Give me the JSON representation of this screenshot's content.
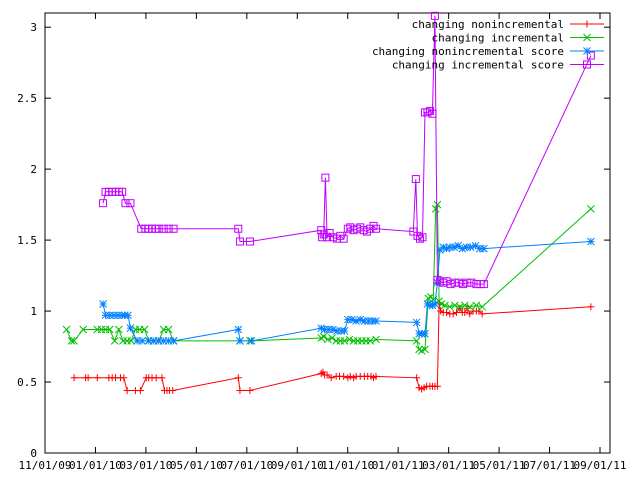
{
  "chart_data": {
    "type": "line",
    "title": "",
    "xlabel": "",
    "ylabel": "",
    "x_ticks": [
      "11/01/09",
      "01/01/10",
      "03/01/10",
      "05/01/10",
      "07/01/10",
      "09/01/10",
      "11/01/10",
      "01/01/11",
      "03/01/11",
      "05/01/11",
      "07/01/11",
      "09/01/11"
    ],
    "ylim": [
      0,
      3.1
    ],
    "y_ticks": [
      {
        "value": 0,
        "label": "0"
      },
      {
        "value": 0.5,
        "label": "0.5"
      },
      {
        "value": 1,
        "label": "1"
      },
      {
        "value": 1.5,
        "label": "1.5"
      },
      {
        "value": 2,
        "label": "2"
      },
      {
        "value": 2.5,
        "label": "2.5"
      },
      {
        "value": 3,
        "label": "3"
      }
    ],
    "legend_position": "top-right",
    "series": [
      {
        "name": "changing nonincremental",
        "color": "#ff0000",
        "marker": "plus",
        "points": [
          [
            "2009-12-06",
            0.53
          ],
          [
            "2009-12-20",
            0.53
          ],
          [
            "2009-12-23",
            0.53
          ],
          [
            "2010-01-03",
            0.53
          ],
          [
            "2010-01-17",
            0.53
          ],
          [
            "2010-01-21",
            0.53
          ],
          [
            "2010-01-25",
            0.53
          ],
          [
            "2010-01-31",
            0.53
          ],
          [
            "2010-02-04",
            0.53
          ],
          [
            "2010-02-08",
            0.44
          ],
          [
            "2010-02-18",
            0.44
          ],
          [
            "2010-02-24",
            0.44
          ],
          [
            "2010-03-03",
            0.53
          ],
          [
            "2010-03-06",
            0.53
          ],
          [
            "2010-03-10",
            0.53
          ],
          [
            "2010-03-15",
            0.53
          ],
          [
            "2010-03-22",
            0.53
          ],
          [
            "2010-03-25",
            0.44
          ],
          [
            "2010-03-28",
            0.44
          ],
          [
            "2010-03-31",
            0.44
          ],
          [
            "2010-04-04",
            0.44
          ],
          [
            "2010-06-22",
            0.53
          ],
          [
            "2010-06-24",
            0.44
          ],
          [
            "2010-07-06",
            0.44
          ],
          [
            "2010-09-30",
            0.56
          ],
          [
            "2010-10-02",
            0.57
          ],
          [
            "2010-10-04",
            0.55
          ],
          [
            "2010-10-07",
            0.55
          ],
          [
            "2010-10-12",
            0.53
          ],
          [
            "2010-10-18",
            0.54
          ],
          [
            "2010-10-22",
            0.54
          ],
          [
            "2010-10-27",
            0.54
          ],
          [
            "2010-11-01",
            0.53
          ],
          [
            "2010-11-04",
            0.54
          ],
          [
            "2010-11-08",
            0.53
          ],
          [
            "2010-11-11",
            0.54
          ],
          [
            "2010-11-16",
            0.54
          ],
          [
            "2010-11-21",
            0.54
          ],
          [
            "2010-11-25",
            0.54
          ],
          [
            "2010-11-29",
            0.54
          ],
          [
            "2010-12-02",
            0.53
          ],
          [
            "2010-12-05",
            0.54
          ],
          [
            "2011-01-23",
            0.53
          ],
          [
            "2011-01-26",
            0.46
          ],
          [
            "2011-01-29",
            0.45
          ],
          [
            "2011-02-01",
            0.46
          ],
          [
            "2011-02-04",
            0.47
          ],
          [
            "2011-02-08",
            0.47
          ],
          [
            "2011-02-11",
            0.47
          ],
          [
            "2011-02-14",
            0.47
          ],
          [
            "2011-02-17",
            0.47
          ],
          [
            "2011-02-19",
            1.05
          ],
          [
            "2011-02-21",
            1.0
          ],
          [
            "2011-02-24",
            0.99
          ],
          [
            "2011-02-28",
            0.99
          ],
          [
            "2011-03-04",
            0.98
          ],
          [
            "2011-03-08",
            0.98
          ],
          [
            "2011-03-12",
            0.99
          ],
          [
            "2011-03-16",
            1.02
          ],
          [
            "2011-03-19",
            0.99
          ],
          [
            "2011-03-22",
            0.99
          ],
          [
            "2011-03-25",
            1.02
          ],
          [
            "2011-03-28",
            0.98
          ],
          [
            "2011-04-01",
            1.0
          ],
          [
            "2011-04-05",
            1.0
          ],
          [
            "2011-04-08",
            1.0
          ],
          [
            "2011-04-12",
            0.98
          ],
          [
            "2011-08-21",
            1.03
          ]
        ]
      },
      {
        "name": "changing incremental",
        "color": "#00c000",
        "marker": "cross",
        "points": [
          [
            "2009-11-27",
            0.87
          ],
          [
            "2009-12-03",
            0.79
          ],
          [
            "2009-12-06",
            0.79
          ],
          [
            "2009-12-17",
            0.87
          ],
          [
            "2010-01-03",
            0.87
          ],
          [
            "2010-01-08",
            0.87
          ],
          [
            "2010-01-13",
            0.87
          ],
          [
            "2010-01-18",
            0.87
          ],
          [
            "2010-01-24",
            0.79
          ],
          [
            "2010-01-29",
            0.87
          ],
          [
            "2010-02-03",
            0.79
          ],
          [
            "2010-02-08",
            0.79
          ],
          [
            "2010-02-13",
            0.79
          ],
          [
            "2010-02-18",
            0.87
          ],
          [
            "2010-02-23",
            0.87
          ],
          [
            "2010-03-01",
            0.87
          ],
          [
            "2010-03-06",
            0.79
          ],
          [
            "2010-03-12",
            0.79
          ],
          [
            "2010-03-18",
            0.79
          ],
          [
            "2010-03-24",
            0.87
          ],
          [
            "2010-03-30",
            0.87
          ],
          [
            "2010-04-05",
            0.79
          ],
          [
            "2010-06-24",
            0.79
          ],
          [
            "2010-07-06",
            0.79
          ],
          [
            "2010-09-30",
            0.81
          ],
          [
            "2010-10-03",
            0.82
          ],
          [
            "2010-10-08",
            0.8
          ],
          [
            "2010-10-13",
            0.81
          ],
          [
            "2010-10-18",
            0.79
          ],
          [
            "2010-10-23",
            0.79
          ],
          [
            "2010-10-28",
            0.79
          ],
          [
            "2010-11-03",
            0.8
          ],
          [
            "2010-11-08",
            0.79
          ],
          [
            "2010-11-13",
            0.79
          ],
          [
            "2010-11-18",
            0.79
          ],
          [
            "2010-11-23",
            0.79
          ],
          [
            "2010-11-28",
            0.79
          ],
          [
            "2010-12-05",
            0.8
          ],
          [
            "2011-01-23",
            0.79
          ],
          [
            "2011-01-26",
            0.73
          ],
          [
            "2011-01-29",
            0.72
          ],
          [
            "2011-02-02",
            0.73
          ],
          [
            "2011-02-06",
            1.09
          ],
          [
            "2011-02-09",
            1.1
          ],
          [
            "2011-02-12",
            1.08
          ],
          [
            "2011-02-15",
            1.72
          ],
          [
            "2011-02-17",
            1.75
          ],
          [
            "2011-02-19",
            1.07
          ],
          [
            "2011-02-22",
            1.05
          ],
          [
            "2011-02-26",
            1.04
          ],
          [
            "2011-03-04",
            1.03
          ],
          [
            "2011-03-10",
            1.04
          ],
          [
            "2011-03-16",
            1.03
          ],
          [
            "2011-03-22",
            1.04
          ],
          [
            "2011-03-28",
            1.03
          ],
          [
            "2011-04-05",
            1.04
          ],
          [
            "2011-04-12",
            1.03
          ],
          [
            "2011-08-21",
            1.72
          ]
        ]
      },
      {
        "name": "changing nonincremental score",
        "color": "#0080ff",
        "marker": "star",
        "points": [
          [
            "2010-01-10",
            1.05
          ],
          [
            "2010-01-13",
            0.97
          ],
          [
            "2010-01-18",
            0.97
          ],
          [
            "2010-01-23",
            0.97
          ],
          [
            "2010-01-28",
            0.97
          ],
          [
            "2010-02-02",
            0.97
          ],
          [
            "2010-02-05",
            0.97
          ],
          [
            "2010-02-09",
            0.97
          ],
          [
            "2010-02-12",
            0.88
          ],
          [
            "2010-02-20",
            0.79
          ],
          [
            "2010-02-26",
            0.79
          ],
          [
            "2010-03-06",
            0.79
          ],
          [
            "2010-03-12",
            0.79
          ],
          [
            "2010-03-18",
            0.79
          ],
          [
            "2010-03-24",
            0.79
          ],
          [
            "2010-03-30",
            0.79
          ],
          [
            "2010-04-05",
            0.79
          ],
          [
            "2010-06-22",
            0.87
          ],
          [
            "2010-06-24",
            0.79
          ],
          [
            "2010-07-08",
            0.79
          ],
          [
            "2010-09-30",
            0.88
          ],
          [
            "2010-10-04",
            0.87
          ],
          [
            "2010-10-09",
            0.87
          ],
          [
            "2010-10-14",
            0.87
          ],
          [
            "2010-10-19",
            0.86
          ],
          [
            "2010-10-24",
            0.86
          ],
          [
            "2010-10-28",
            0.86
          ],
          [
            "2010-11-01",
            0.94
          ],
          [
            "2010-11-06",
            0.94
          ],
          [
            "2010-11-11",
            0.93
          ],
          [
            "2010-11-16",
            0.94
          ],
          [
            "2010-11-21",
            0.93
          ],
          [
            "2010-11-26",
            0.93
          ],
          [
            "2010-12-01",
            0.93
          ],
          [
            "2010-12-05",
            0.93
          ],
          [
            "2011-01-23",
            0.92
          ],
          [
            "2011-01-26",
            0.84
          ],
          [
            "2011-01-29",
            0.84
          ],
          [
            "2011-02-02",
            0.84
          ],
          [
            "2011-02-05",
            1.05
          ],
          [
            "2011-02-08",
            1.04
          ],
          [
            "2011-02-11",
            1.04
          ],
          [
            "2011-02-14",
            1.05
          ],
          [
            "2011-02-17",
            1.2
          ],
          [
            "2011-02-20",
            1.43
          ],
          [
            "2011-02-24",
            1.45
          ],
          [
            "2011-02-28",
            1.44
          ],
          [
            "2011-03-04",
            1.45
          ],
          [
            "2011-03-09",
            1.45
          ],
          [
            "2011-03-14",
            1.46
          ],
          [
            "2011-03-19",
            1.44
          ],
          [
            "2011-03-24",
            1.45
          ],
          [
            "2011-03-29",
            1.45
          ],
          [
            "2011-04-04",
            1.46
          ],
          [
            "2011-04-09",
            1.44
          ],
          [
            "2011-04-14",
            1.44
          ],
          [
            "2011-08-21",
            1.49
          ]
        ]
      },
      {
        "name": "changing incremental score",
        "color": "#c000ff",
        "marker": "box",
        "points": [
          [
            "2010-01-10",
            1.76
          ],
          [
            "2010-01-13",
            1.84
          ],
          [
            "2010-01-17",
            1.84
          ],
          [
            "2010-01-21",
            1.84
          ],
          [
            "2010-01-25",
            1.84
          ],
          [
            "2010-01-29",
            1.84
          ],
          [
            "2010-02-02",
            1.84
          ],
          [
            "2010-02-06",
            1.76
          ],
          [
            "2010-02-12",
            1.76
          ],
          [
            "2010-02-25",
            1.58
          ],
          [
            "2010-03-02",
            1.58
          ],
          [
            "2010-03-06",
            1.58
          ],
          [
            "2010-03-10",
            1.58
          ],
          [
            "2010-03-14",
            1.58
          ],
          [
            "2010-03-18",
            1.58
          ],
          [
            "2010-03-24",
            1.58
          ],
          [
            "2010-03-30",
            1.58
          ],
          [
            "2010-04-05",
            1.58
          ],
          [
            "2010-06-22",
            1.58
          ],
          [
            "2010-06-24",
            1.49
          ],
          [
            "2010-07-06",
            1.49
          ],
          [
            "2010-09-30",
            1.57
          ],
          [
            "2010-10-01",
            1.52
          ],
          [
            "2010-10-03",
            1.54
          ],
          [
            "2010-10-05",
            1.94
          ],
          [
            "2010-10-07",
            1.52
          ],
          [
            "2010-10-10",
            1.55
          ],
          [
            "2010-10-14",
            1.52
          ],
          [
            "2010-10-19",
            1.51
          ],
          [
            "2010-10-23",
            1.53
          ],
          [
            "2010-10-27",
            1.51
          ],
          [
            "2010-11-01",
            1.58
          ],
          [
            "2010-11-04",
            1.59
          ],
          [
            "2010-11-08",
            1.57
          ],
          [
            "2010-11-12",
            1.58
          ],
          [
            "2010-11-16",
            1.59
          ],
          [
            "2010-11-20",
            1.57
          ],
          [
            "2010-11-24",
            1.56
          ],
          [
            "2010-11-28",
            1.58
          ],
          [
            "2010-12-02",
            1.6
          ],
          [
            "2010-12-05",
            1.58
          ],
          [
            "2011-01-19",
            1.56
          ],
          [
            "2011-01-22",
            1.93
          ],
          [
            "2011-01-24",
            1.53
          ],
          [
            "2011-01-27",
            1.51
          ],
          [
            "2011-01-30",
            1.52
          ],
          [
            "2011-02-02",
            2.4
          ],
          [
            "2011-02-05",
            2.4
          ],
          [
            "2011-02-08",
            2.41
          ],
          [
            "2011-02-11",
            2.39
          ],
          [
            "2011-02-14",
            3.08
          ],
          [
            "2011-02-17",
            1.22
          ],
          [
            "2011-02-20",
            1.21
          ],
          [
            "2011-02-24",
            1.2
          ],
          [
            "2011-02-28",
            1.21
          ],
          [
            "2011-03-05",
            1.19
          ],
          [
            "2011-03-10",
            1.2
          ],
          [
            "2011-03-15",
            1.2
          ],
          [
            "2011-03-20",
            1.19
          ],
          [
            "2011-03-25",
            1.2
          ],
          [
            "2011-03-30",
            1.2
          ],
          [
            "2011-04-05",
            1.19
          ],
          [
            "2011-04-10",
            1.19
          ],
          [
            "2011-04-14",
            1.19
          ],
          [
            "2011-08-21",
            2.8
          ]
        ]
      }
    ]
  }
}
